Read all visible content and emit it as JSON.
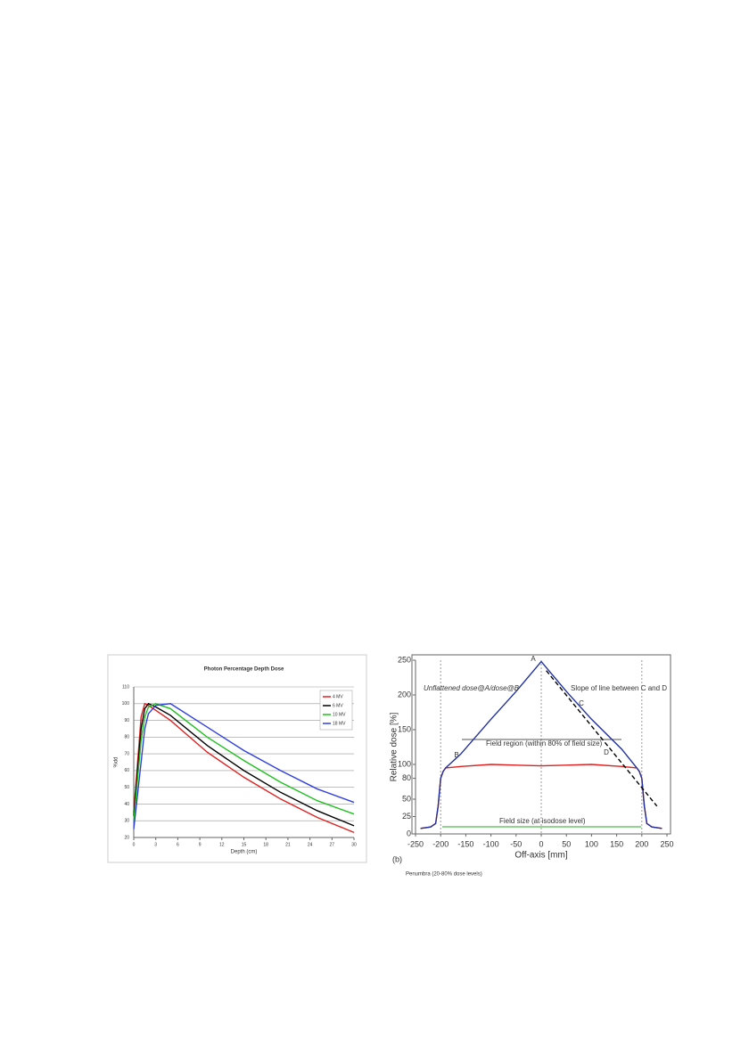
{
  "chart_data": [
    {
      "type": "line",
      "title": "Photon Percentage Depth Dose",
      "x_label": "Depth (cm)",
      "y_label": "%dd",
      "x": [
        0,
        1,
        1.5,
        2,
        3,
        5,
        10,
        15,
        20,
        25,
        30
      ],
      "series": [
        {
          "name": "4 MV",
          "color": "#e02020",
          "values": [
            35,
            92,
            100,
            99,
            96,
            90,
            71,
            56,
            43,
            32,
            23
          ]
        },
        {
          "name": "6 MV",
          "color": "#000000",
          "values": [
            33,
            85,
            97,
            100,
            98,
            93,
            75,
            60,
            47,
            36,
            27
          ]
        },
        {
          "name": "10 MV",
          "color": "#20c020",
          "values": [
            30,
            78,
            92,
            98,
            100,
            97,
            80,
            66,
            53,
            42,
            34
          ]
        },
        {
          "name": "18 MV",
          "color": "#3040e0",
          "values": [
            25,
            65,
            85,
            94,
            99,
            100,
            86,
            72,
            60,
            49,
            41
          ]
        }
      ],
      "xlim": [
        0,
        30
      ],
      "xticks": [
        0,
        3,
        6,
        9,
        12,
        15,
        18,
        21,
        24,
        27,
        30
      ],
      "ylim": [
        20,
        110
      ],
      "yticks": [
        20,
        30,
        40,
        50,
        60,
        70,
        80,
        90,
        100,
        110
      ],
      "grid": true,
      "legend": "upper right"
    },
    {
      "type": "line",
      "x_label": "Off-axis [mm]",
      "y_label": "Relative dose [%]",
      "x": [
        -240,
        -220,
        -210,
        -205,
        -200,
        -195,
        -190,
        -160,
        -100,
        -50,
        0,
        50,
        100,
        160,
        190,
        195,
        200,
        205,
        210,
        220,
        240
      ],
      "series": [
        {
          "color": "#e02020",
          "values": [
            8,
            10,
            15,
            40,
            80,
            90,
            95,
            97,
            100,
            99,
            98,
            99,
            100,
            97,
            95,
            90,
            80,
            40,
            15,
            10,
            8
          ]
        },
        {
          "color": "#2030a0",
          "values": [
            8,
            10,
            15,
            40,
            80,
            90,
            95,
            115,
            165,
            205,
            248,
            205,
            165,
            122,
            95,
            90,
            80,
            40,
            15,
            10,
            8
          ]
        },
        {
          "color": "#000000",
          "dash": true,
          "x": [
            10,
            230
          ],
          "values": [
            235,
            40
          ]
        }
      ],
      "xlim": [
        -250,
        250
      ],
      "xticks": [
        -250,
        -200,
        -150,
        -100,
        -50,
        0,
        50,
        100,
        150,
        200,
        250
      ],
      "ylim": [
        0,
        250
      ],
      "yticks": [
        0,
        25,
        50,
        80,
        100,
        150,
        200,
        250
      ],
      "grid": false,
      "annotations": [
        "Unflattened dose@A/dose@B",
        "Slope of line between C and D",
        "Field region (within 80% of field size)",
        "Field size (at isodose level)",
        "(b)",
        "Penumbra (20-80% dose levels)",
        "A",
        "B",
        "C",
        "D"
      ]
    }
  ]
}
